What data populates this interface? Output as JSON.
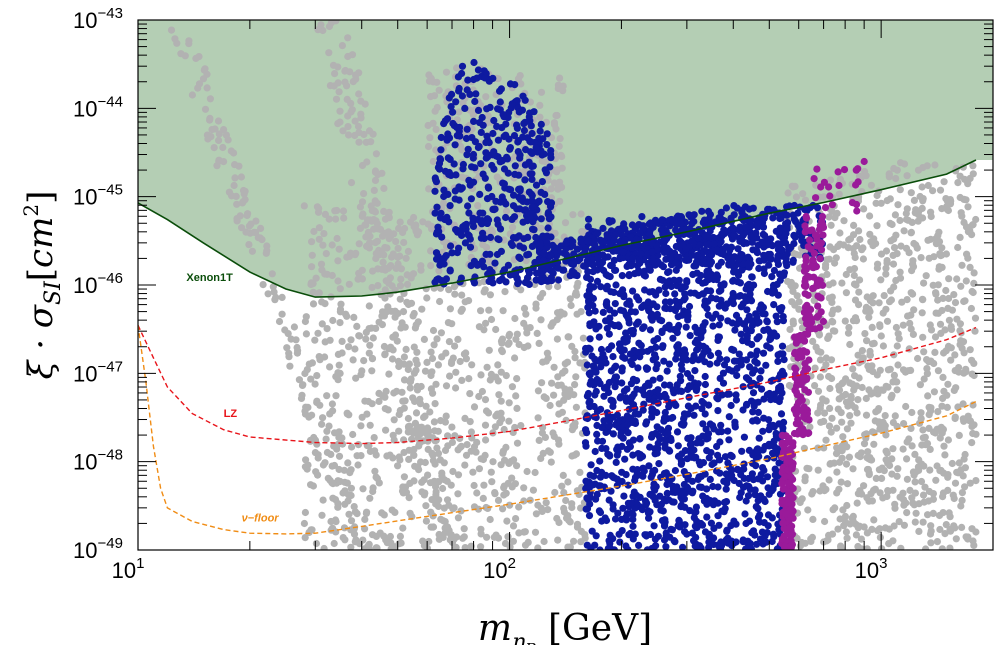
{
  "chart_data": {
    "type": "scatter",
    "title": "",
    "xlabel": "m_{η_R} [GeV]",
    "ylabel": "ξ · σ_{SI}[cm²]",
    "x_scale": "log",
    "y_scale": "log",
    "xlim": [
      10,
      2000
    ],
    "ylim": [
      1e-49,
      1e-43
    ],
    "x_ticks": [
      {
        "value": 10,
        "base": "10",
        "exp": "1"
      },
      {
        "value": 100,
        "base": "10",
        "exp": "2"
      },
      {
        "value": 1000,
        "base": "10",
        "exp": "3"
      }
    ],
    "y_ticks": [
      {
        "value": 1e-43,
        "base": "10",
        "exp": "−43"
      },
      {
        "value": 1e-44,
        "base": "10",
        "exp": "−44"
      },
      {
        "value": 1e-45,
        "base": "10",
        "exp": "−45"
      },
      {
        "value": 1e-46,
        "base": "10",
        "exp": "−46"
      },
      {
        "value": 1e-47,
        "base": "10",
        "exp": "−47"
      },
      {
        "value": 1e-48,
        "base": "10",
        "exp": "−48"
      },
      {
        "value": 1e-49,
        "base": "10",
        "exp": "−49"
      }
    ],
    "limits": [
      {
        "name": "Xenon1T",
        "color": "#0a4d0a",
        "dash": "solid",
        "excluded_fill": "#6a9e6a",
        "points": [
          [
            10,
            8.5e-46
          ],
          [
            12,
            5.5e-46
          ],
          [
            15,
            3e-46
          ],
          [
            20,
            1.4e-46
          ],
          [
            25,
            9e-47
          ],
          [
            30,
            7.3e-47
          ],
          [
            40,
            7.5e-47
          ],
          [
            50,
            8.3e-47
          ],
          [
            70,
            1.05e-46
          ],
          [
            100,
            1.4e-46
          ],
          [
            150,
            2.1e-46
          ],
          [
            200,
            2.8e-46
          ],
          [
            300,
            4e-46
          ],
          [
            500,
            6.5e-46
          ],
          [
            700,
            8.6e-46
          ],
          [
            1000,
            1.2e-45
          ],
          [
            1500,
            1.8e-45
          ],
          [
            1800,
            2.6e-45
          ]
        ]
      },
      {
        "name": "LZ",
        "color": "#e8141a",
        "dash": "dashed",
        "points": [
          [
            10,
            3.5e-47
          ],
          [
            11,
            1.5e-47
          ],
          [
            12,
            7e-48
          ],
          [
            14,
            3.5e-48
          ],
          [
            17,
            2.3e-48
          ],
          [
            20,
            1.9e-48
          ],
          [
            30,
            1.65e-48
          ],
          [
            40,
            1.6e-48
          ],
          [
            50,
            1.65e-48
          ],
          [
            70,
            1.85e-48
          ],
          [
            100,
            2.2e-48
          ],
          [
            150,
            3e-48
          ],
          [
            200,
            3.8e-48
          ],
          [
            300,
            5.3e-48
          ],
          [
            500,
            8e-48
          ],
          [
            700,
            1.1e-47
          ],
          [
            1000,
            1.5e-47
          ],
          [
            1500,
            2.4e-47
          ],
          [
            1800,
            3.3e-47
          ]
        ]
      },
      {
        "name": "ν−floor",
        "color": "#f08c14",
        "dash": "dashed",
        "points": [
          [
            10,
            3.5e-47
          ],
          [
            10.5,
            8e-48
          ],
          [
            11,
            1.5e-48
          ],
          [
            11.5,
            5e-49
          ],
          [
            12,
            3e-49
          ],
          [
            14,
            2.1e-49
          ],
          [
            17,
            1.7e-49
          ],
          [
            20,
            1.55e-49
          ],
          [
            25,
            1.52e-49
          ],
          [
            30,
            1.55e-49
          ],
          [
            40,
            1.85e-49
          ],
          [
            60,
            2.4e-49
          ],
          [
            100,
            3.3e-49
          ],
          [
            200,
            5.3e-49
          ],
          [
            300,
            7.2e-49
          ],
          [
            500,
            1.08e-48
          ],
          [
            700,
            1.5e-48
          ],
          [
            1000,
            2.1e-48
          ],
          [
            1500,
            3.3e-48
          ],
          [
            1800,
            4.8e-48
          ]
        ]
      }
    ],
    "series": [
      {
        "label": "gray points",
        "color": "#b2b2b2"
      },
      {
        "label": "blue points",
        "color": "#0e1aa0"
      },
      {
        "label": "magenta points",
        "color": "#9a1a9a"
      }
    ],
    "regions": [
      {
        "series": 0,
        "band": "diag",
        "x0": 13,
        "y0": 8e-44,
        "x1": 40,
        "y1": 1e-49,
        "n": 140,
        "spread": 0.06
      },
      {
        "series": 0,
        "band": "diag",
        "x0": 33,
        "y0": 1e-43,
        "x1": 70,
        "y1": 1e-49,
        "n": 220,
        "spread": 0.09
      },
      {
        "series": 0,
        "band": "box",
        "xmin": 28,
        "xmax": 160,
        "ymin": 1e-49,
        "ymax": 8e-46,
        "n": 900
      },
      {
        "series": 0,
        "band": "box",
        "xmin": 60,
        "xmax": 140,
        "ymin": 8e-46,
        "ymax": 3e-44,
        "n": 180
      },
      {
        "series": 0,
        "band": "box",
        "xmin": 560,
        "xmax": 1800,
        "ymin": 1e-49,
        "ymax": 2.5e-45,
        "n": 900
      },
      {
        "series": 1,
        "band": "box",
        "xmin": 160,
        "xmax": 550,
        "ymin": 1e-49,
        "ymax": 6e-46,
        "n": 1500
      },
      {
        "series": 1,
        "band": "box",
        "xmin": 120,
        "xmax": 700,
        "ymin": 1.6e-46,
        "ymax": 8e-46,
        "n": 500
      },
      {
        "series": 1,
        "band": "peak",
        "xmin": 63,
        "xmax": 130,
        "ymin": 1e-46,
        "ymax": 3.5e-44,
        "n": 450
      },
      {
        "series": 2,
        "band": "strip",
        "xmin": 540,
        "xmax": 580,
        "ymin": 1e-49,
        "ymax": 2e-48,
        "n": 140
      },
      {
        "series": 2,
        "band": "strip",
        "xmin": 580,
        "xmax": 640,
        "ymin": 2e-48,
        "ymax": 3e-47,
        "n": 80
      },
      {
        "series": 2,
        "band": "strip",
        "xmin": 620,
        "xmax": 700,
        "ymin": 3e-47,
        "ymax": 6e-46,
        "n": 80
      },
      {
        "series": 2,
        "band": "strip",
        "xmin": 650,
        "xmax": 920,
        "ymin": 6e-46,
        "ymax": 2.5e-45,
        "n": 20
      }
    ]
  }
}
